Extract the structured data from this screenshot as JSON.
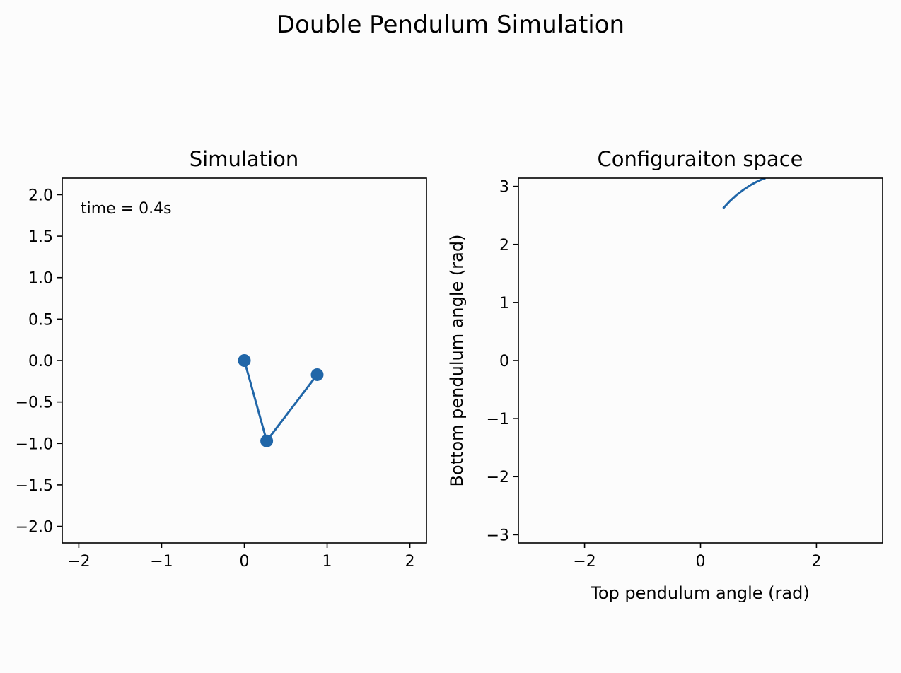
{
  "figure": {
    "suptitle": "Double Pendulum Simulation",
    "line_color": "#2066a8"
  },
  "chart_data": [
    {
      "type": "line",
      "title": "Simulation",
      "xlabel": "",
      "ylabel": "",
      "xlim": [
        -2.2,
        2.2
      ],
      "ylim": [
        -2.2,
        2.2
      ],
      "xticks": [
        -2,
        -1,
        0,
        1,
        2
      ],
      "xtick_labels": [
        "−2",
        "−1",
        "0",
        "1",
        "2"
      ],
      "yticks": [
        2.0,
        1.5,
        1.0,
        0.5,
        0.0,
        -0.5,
        -1.0,
        -1.5,
        -2.0
      ],
      "ytick_labels": [
        "2.0",
        "1.5",
        "1.0",
        "0.5",
        "0.0",
        "−0.5",
        "−1.0",
        "−1.5",
        "−2.0"
      ],
      "grid": false,
      "annotation": "time = 0.4s",
      "series": [
        {
          "x": [
            0.0,
            0.27,
            0.88
          ],
          "y": [
            0.0,
            -0.97,
            -0.17
          ],
          "markers": true
        }
      ]
    },
    {
      "type": "line",
      "title": "Configuraiton space",
      "xlabel": "Top pendulum angle (rad)",
      "ylabel": "Bottom pendulum angle (rad)",
      "xlim": [
        -3.1416,
        3.1416
      ],
      "ylim": [
        -3.1416,
        3.1416
      ],
      "xticks": [
        -2,
        0,
        2
      ],
      "xtick_labels": [
        "−2",
        "0",
        "2"
      ],
      "yticks": [
        3,
        2,
        1,
        0,
        -1,
        -2,
        -3
      ],
      "ytick_labels": [
        "3",
        "2",
        "1",
        "0",
        "−1",
        "−2",
        "−3"
      ],
      "grid": false,
      "series": [
        {
          "x": [
            0.39,
            0.5,
            0.62,
            0.74,
            0.86,
            0.97,
            1.08,
            1.12
          ],
          "y": [
            2.62,
            2.74,
            2.85,
            2.94,
            3.02,
            3.08,
            3.13,
            3.1416
          ],
          "markers": false
        }
      ]
    }
  ]
}
